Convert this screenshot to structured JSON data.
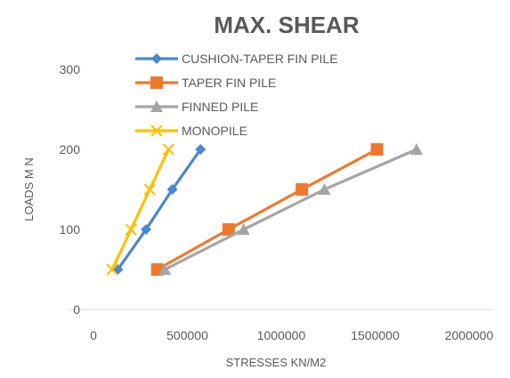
{
  "chart_data": {
    "type": "line",
    "title": "MAX. SHEAR",
    "xlabel": "STRESSES KN/M2",
    "ylabel": "LOADS M N",
    "xlim": [
      0,
      2000000
    ],
    "ylim": [
      0,
      300
    ],
    "x_ticks": [
      "0",
      "500000",
      "1000000",
      "1500000",
      "2000000"
    ],
    "y_ticks": [
      "0",
      "100",
      "200",
      "300"
    ],
    "legend_position": "top-left",
    "grid": false,
    "series": [
      {
        "name": "CUSHION-TAPER FIN PILE",
        "color": "#4a87cc",
        "marker": "diamond",
        "points": [
          [
            130000,
            50
          ],
          [
            280000,
            100
          ],
          [
            420000,
            150
          ],
          [
            570000,
            200
          ]
        ]
      },
      {
        "name": "TAPER FIN PILE",
        "color": "#f0782d",
        "marker": "square",
        "points": [
          [
            340000,
            50
          ],
          [
            720000,
            100
          ],
          [
            1110000,
            150
          ],
          [
            1510000,
            200
          ]
        ]
      },
      {
        "name": "FINNED PILE",
        "color": "#a5a5a5",
        "marker": "triangle",
        "points": [
          [
            380000,
            50
          ],
          [
            800000,
            100
          ],
          [
            1230000,
            150
          ],
          [
            1720000,
            200
          ]
        ]
      },
      {
        "name": "MONOPILE",
        "color": "#ffc000",
        "marker": "x",
        "points": [
          [
            100000,
            50
          ],
          [
            200000,
            100
          ],
          [
            300000,
            150
          ],
          [
            400000,
            200
          ]
        ]
      }
    ]
  }
}
